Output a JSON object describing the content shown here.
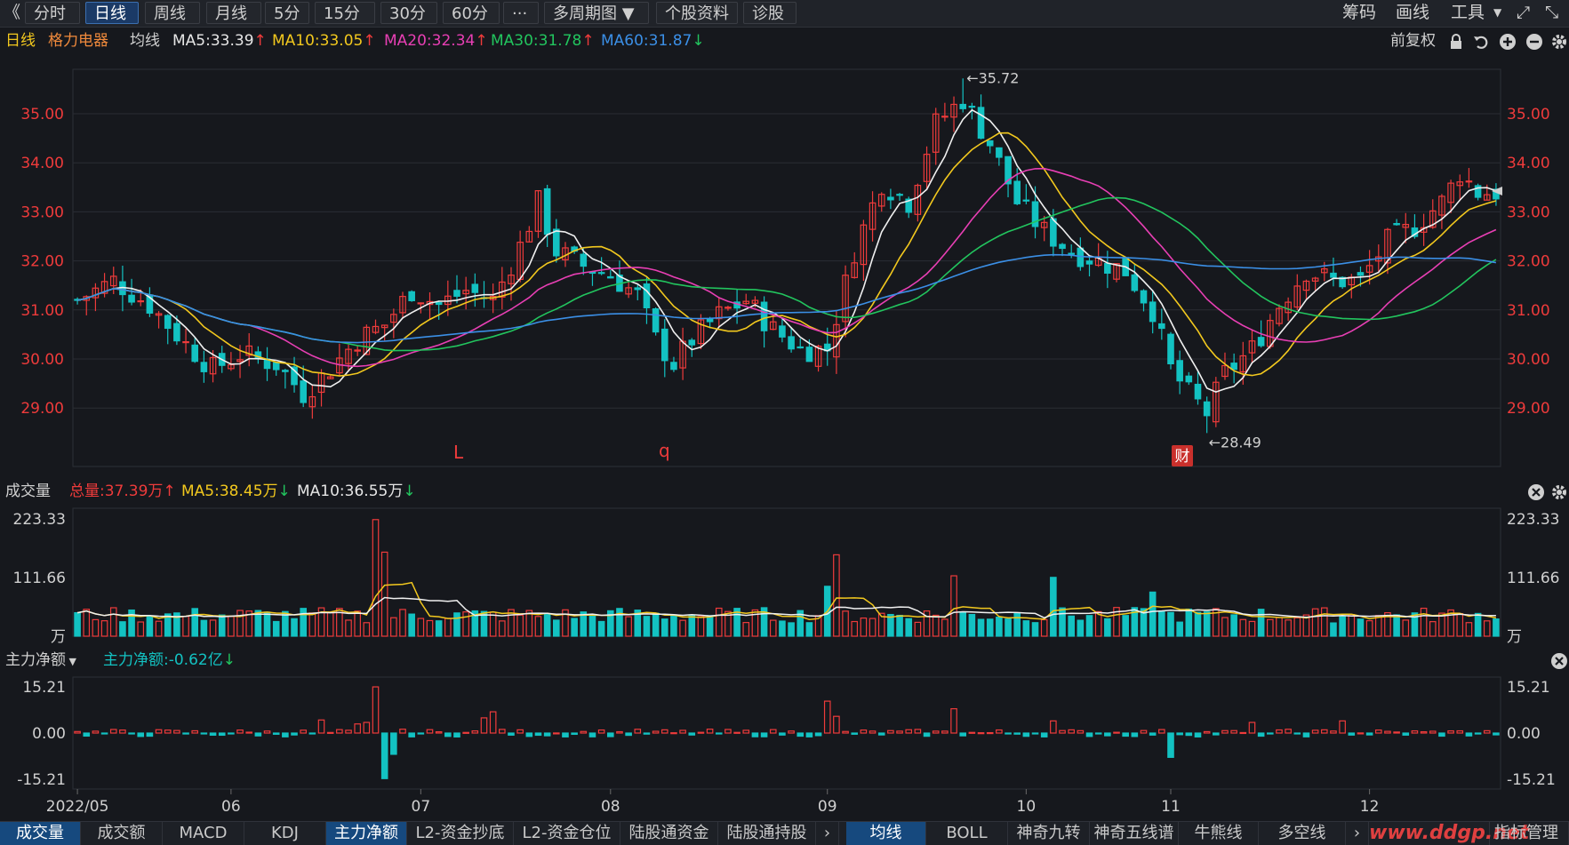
{
  "toolbar": {
    "back_glyph": "《",
    "tabs": [
      "分时",
      "日线",
      "周线",
      "月线",
      "5分",
      "15分",
      "30分",
      "60分",
      "···",
      "多周期图",
      "个股资料",
      "诊股"
    ],
    "active_tab": "日线",
    "right": [
      "筹码",
      "画线",
      "工具"
    ]
  },
  "ma_bar": {
    "period": "日线",
    "stock": "格力电器",
    "label": "均线",
    "items": [
      {
        "text": "MA5:33.39",
        "arrow": "up",
        "color": "#e6e6e6"
      },
      {
        "text": "MA10:33.05",
        "arrow": "up",
        "color": "#f2c81e"
      },
      {
        "text": "MA20:32.34",
        "arrow": "up",
        "color": "#e83fb4"
      },
      {
        "text": "MA30:31.78",
        "arrow": "up",
        "color": "#22c55e"
      },
      {
        "text": "MA60:31.87",
        "arrow": "down",
        "color": "#3b8fe6"
      }
    ],
    "adjust": "前复权"
  },
  "colors": {
    "up": "#ee3b3b",
    "down": "#13c2c2",
    "ma5": "#f0f0f0",
    "ma10": "#f2c81e",
    "ma20": "#e83fb4",
    "ma30": "#22c55e",
    "ma60": "#3b8fe6"
  },
  "volume_bar": {
    "title": "成交量",
    "total": "总量:37.39万",
    "total_arrow": "up",
    "ma5": "MA5:38.45万",
    "ma5_arrow": "down",
    "ma10": "MA10:36.55万",
    "ma10_arrow": "down"
  },
  "flow_bar": {
    "title": "主力净额",
    "value": "主力净额:-0.62亿",
    "arrow": "down"
  },
  "chart_data": {
    "type": "candlestick",
    "price_axis": {
      "ticks": [
        "35.00",
        "34.00",
        "33.00",
        "32.00",
        "31.00",
        "30.00",
        "29.00"
      ],
      "range": [
        28.3,
        36.1
      ]
    },
    "annotations": {
      "high": "35.72",
      "low": "28.49",
      "marks": [
        "L",
        "q",
        "财"
      ]
    },
    "x_labels": [
      "2022/05",
      "06",
      "07",
      "08",
      "09",
      "10",
      "11",
      "12"
    ],
    "x_label_index": [
      0,
      17,
      38,
      59,
      83,
      105,
      121,
      143
    ],
    "key_points": [
      [
        0,
        31.2
      ],
      [
        4,
        31.6
      ],
      [
        8,
        31.1
      ],
      [
        12,
        30.3
      ],
      [
        15,
        29.8
      ],
      [
        18,
        30.1
      ],
      [
        22,
        29.9
      ],
      [
        25,
        29.3
      ],
      [
        28,
        29.8
      ],
      [
        31,
        30.4
      ],
      [
        34,
        30.7
      ],
      [
        37,
        31.4
      ],
      [
        40,
        31.1
      ],
      [
        43,
        31.4
      ],
      [
        46,
        31.2
      ],
      [
        49,
        32.3
      ],
      [
        51,
        33.2
      ],
      [
        53,
        32.2
      ],
      [
        56,
        31.9
      ],
      [
        59,
        31.7
      ],
      [
        62,
        31.3
      ],
      [
        64,
        30.4
      ],
      [
        66,
        29.9
      ],
      [
        68,
        30.4
      ],
      [
        71,
        30.9
      ],
      [
        74,
        31.2
      ],
      [
        77,
        30.6
      ],
      [
        80,
        30.2
      ],
      [
        83,
        30.2
      ],
      [
        86,
        32.2
      ],
      [
        89,
        33.6
      ],
      [
        92,
        33.2
      ],
      [
        95,
        34.8
      ],
      [
        98,
        35.3
      ],
      [
        101,
        34.4
      ],
      [
        104,
        33.2
      ],
      [
        107,
        32.6
      ],
      [
        110,
        32.2
      ],
      [
        113,
        32.0
      ],
      [
        116,
        31.8
      ],
      [
        119,
        31.0
      ],
      [
        121,
        29.8
      ],
      [
        123,
        29.3
      ],
      [
        125,
        28.9
      ],
      [
        127,
        29.7
      ],
      [
        130,
        30.2
      ],
      [
        133,
        31.1
      ],
      [
        136,
        31.8
      ],
      [
        139,
        31.6
      ],
      [
        142,
        31.6
      ],
      [
        145,
        32.4
      ],
      [
        148,
        32.7
      ],
      [
        151,
        33.2
      ],
      [
        153,
        33.8
      ],
      [
        155,
        33.4
      ]
    ],
    "volume_axis": {
      "ticks": [
        "223.33",
        "111.66"
      ],
      "unit": "万",
      "max": 223.33
    },
    "volume_spikes": [
      [
        33,
        222
      ],
      [
        34,
        160
      ],
      [
        83,
        95
      ],
      [
        84,
        155
      ],
      [
        97,
        115
      ],
      [
        108,
        112
      ],
      [
        119,
        84
      ]
    ],
    "flow_axis": {
      "ticks": [
        "15.21",
        "0.00",
        "-15.21"
      ],
      "max": 15.21
    },
    "flow_spikes": [
      [
        33,
        15.2
      ],
      [
        34,
        -15.0
      ],
      [
        35,
        -7
      ],
      [
        31,
        3
      ],
      [
        32,
        3.5
      ],
      [
        27,
        4.3
      ],
      [
        45,
        5
      ],
      [
        46,
        7
      ],
      [
        83,
        10.5
      ],
      [
        84,
        5.5
      ],
      [
        97,
        8
      ],
      [
        108,
        4
      ],
      [
        121,
        -8
      ],
      [
        130,
        3.5
      ],
      [
        140,
        4
      ]
    ],
    "vol_axis_right_unit": "万"
  },
  "bottom_tabs_left": [
    "成交量",
    "成交额",
    "MACD",
    "KDJ",
    "主力净额",
    "L2-资金抄底",
    "L2-资金仓位",
    "陆股通资金",
    "陆股通持股"
  ],
  "bottom_tabs_right": [
    "均线",
    "BOLL",
    "神奇九转",
    "神奇五线谱",
    "牛熊线",
    "多空线"
  ],
  "bottom_last": "指标管理",
  "watermark": "www.ddgp.net"
}
